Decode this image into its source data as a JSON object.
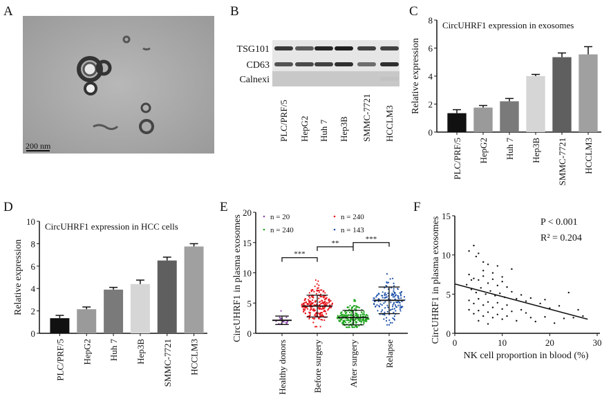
{
  "panels": {
    "A": "A",
    "B": "B",
    "C": "C",
    "D": "D",
    "E": "E",
    "F": "F"
  },
  "panel_a": {
    "scale_bar": "200 nm"
  },
  "panel_b": {
    "rows": [
      "TSG101",
      "CD63",
      "Calnexi"
    ],
    "lanes": [
      "PLC/PRF/5",
      "HepG2",
      "Huh 7",
      "Hep3B",
      "SMMC-7721",
      "HCCLM3"
    ],
    "band_intensity": {
      "TSG101": [
        0.8,
        0.6,
        0.9,
        0.95,
        0.75,
        0.75
      ],
      "CD63": [
        0.65,
        0.7,
        0.75,
        0.85,
        0.5,
        0.85
      ],
      "Calnexi": [
        0,
        0,
        0,
        0,
        0,
        0.1
      ]
    }
  },
  "chart_data": [
    {
      "id": "C",
      "type": "bar",
      "title": "CircUHRF1 expression in exosomes",
      "ylabel": "Relative expression",
      "xlabel": "",
      "ylim": [
        0,
        8
      ],
      "yticks": [
        "0",
        "2",
        "4",
        "6",
        "8"
      ],
      "categories": [
        "PLC/PRF/5",
        "HepG2",
        "Huh 7",
        "Hep3B",
        "SMMC-7721",
        "HCCLM3"
      ],
      "values": [
        1.35,
        1.75,
        2.2,
        4.0,
        5.35,
        5.55
      ],
      "errors": [
        0.25,
        0.15,
        0.2,
        0.12,
        0.3,
        0.55
      ],
      "colors": [
        "#111111",
        "#9a9a9a",
        "#7a7a7a",
        "#d6d6d6",
        "#5f5f5f",
        "#a0a0a0"
      ]
    },
    {
      "id": "D",
      "type": "bar",
      "title": "CircUHRF1 expression in HCC cells",
      "ylabel": "Relative expression",
      "xlabel": "",
      "ylim": [
        0,
        10
      ],
      "yticks": [
        "0",
        "2",
        "4",
        "6",
        "8",
        "10"
      ],
      "categories": [
        "PLC/PRF/5",
        "HepG2",
        "Huh 7",
        "Hep3B",
        "SMMC-7721",
        "HCCLM3"
      ],
      "values": [
        1.35,
        2.15,
        3.9,
        4.4,
        6.5,
        7.75
      ],
      "errors": [
        0.25,
        0.2,
        0.2,
        0.35,
        0.3,
        0.25
      ],
      "colors": [
        "#111111",
        "#9a9a9a",
        "#7a7a7a",
        "#d6d6d6",
        "#5f5f5f",
        "#a0a0a0"
      ]
    },
    {
      "id": "E",
      "type": "scatter",
      "ylabel": "CircUHRF1 in plasma exosomes",
      "ylim": [
        0,
        20
      ],
      "yticks": [
        "0",
        "5",
        "10",
        "15",
        "20"
      ],
      "categories": [
        "Healthy donors",
        "Before surgery",
        "After surgery",
        "Relapse"
      ],
      "series": [
        {
          "name": "Healthy donors",
          "n_label": "n = 20",
          "n": 20,
          "mean": 2.15,
          "sd": 0.7,
          "min": 1.0,
          "max": 3.7,
          "color": "#8e44ad"
        },
        {
          "name": "Before surgery",
          "n_label": "n = 240",
          "n": 240,
          "mean": 4.5,
          "sd": 1.8,
          "min": 1.1,
          "max": 11.5,
          "color": "#e8141b"
        },
        {
          "name": "After surgery",
          "n_label": "n = 240",
          "n": 240,
          "mean": 2.6,
          "sd": 1.2,
          "min": 1.0,
          "max": 7.0,
          "color": "#1fa61f"
        },
        {
          "name": "Relapse",
          "n_label": "n = 143",
          "n": 143,
          "mean": 5.45,
          "sd": 2.2,
          "min": 1.4,
          "max": 14.0,
          "color": "#1c4fa8"
        }
      ],
      "comparisons": [
        {
          "from": 0,
          "to": 1,
          "label": "***",
          "y": 12.5
        },
        {
          "from": 1,
          "to": 2,
          "label": "**",
          "y": 14.3
        },
        {
          "from": 2,
          "to": 3,
          "label": "***",
          "y": 15.0
        }
      ]
    },
    {
      "id": "F",
      "type": "scatter",
      "xlabel": "NK cell proportion in blood (%)",
      "ylabel": "CircUHRF1 in plasma exosomes",
      "xlim": [
        0,
        30
      ],
      "ylim": [
        0,
        15
      ],
      "xticks": [
        "0",
        "10",
        "20",
        "30"
      ],
      "yticks": [
        "0",
        "5",
        "10",
        "15"
      ],
      "annotations": [
        "P < 0.001",
        "R² = 0.204"
      ],
      "regression": {
        "x": [
          0,
          28
        ],
        "y": [
          6.3,
          1.8
        ]
      },
      "points": [
        [
          3,
          10.5
        ],
        [
          4,
          11.2
        ],
        [
          4.5,
          9.8
        ],
        [
          5,
          10.2
        ],
        [
          6,
          9.1
        ],
        [
          7,
          8.8
        ],
        [
          9,
          8.6
        ],
        [
          12,
          8.2
        ],
        [
          3,
          7.5
        ],
        [
          4,
          7.0
        ],
        [
          5,
          6.8
        ],
        [
          6,
          7.3
        ],
        [
          7,
          6.4
        ],
        [
          8,
          6.9
        ],
        [
          9,
          6.1
        ],
        [
          10,
          6.6
        ],
        [
          11,
          5.9
        ],
        [
          3.5,
          5.6
        ],
        [
          4.5,
          5.2
        ],
        [
          5.5,
          5.8
        ],
        [
          6.5,
          5.0
        ],
        [
          7.5,
          5.4
        ],
        [
          8.5,
          4.8
        ],
        [
          9.5,
          5.1
        ],
        [
          10.5,
          4.6
        ],
        [
          12,
          5.3
        ],
        [
          13,
          4.4
        ],
        [
          14,
          4.9
        ],
        [
          15,
          4.1
        ],
        [
          16,
          4.5
        ],
        [
          18,
          3.8
        ],
        [
          20,
          3.2
        ],
        [
          22,
          3.5
        ],
        [
          24,
          5.2
        ],
        [
          25,
          2.0
        ],
        [
          26,
          3.0
        ],
        [
          3,
          4.2
        ],
        [
          4,
          3.8
        ],
        [
          5,
          4.4
        ],
        [
          6,
          3.6
        ],
        [
          7,
          4.0
        ],
        [
          8,
          3.3
        ],
        [
          9,
          3.9
        ],
        [
          10,
          3.1
        ],
        [
          11,
          3.6
        ],
        [
          12,
          2.8
        ],
        [
          3,
          3.0
        ],
        [
          4,
          2.5
        ],
        [
          5,
          2.9
        ],
        [
          6,
          2.2
        ],
        [
          7,
          2.7
        ],
        [
          8,
          2.0
        ],
        [
          9,
          2.4
        ],
        [
          10,
          1.8
        ],
        [
          11,
          2.2
        ],
        [
          13,
          1.6
        ],
        [
          15,
          2.6
        ],
        [
          17,
          1.5
        ],
        [
          19,
          2.1
        ],
        [
          21,
          1.3
        ],
        [
          5,
          1.6
        ],
        [
          7,
          1.2
        ],
        [
          2.5,
          6.2
        ],
        [
          3.5,
          6.8
        ],
        [
          6,
          8.0
        ],
        [
          8,
          7.7
        ],
        [
          10,
          7.2
        ],
        [
          14,
          3.0
        ],
        [
          16,
          2.0
        ],
        [
          19,
          4.3
        ],
        [
          23,
          1.9
        ],
        [
          27,
          2.2
        ]
      ]
    }
  ]
}
